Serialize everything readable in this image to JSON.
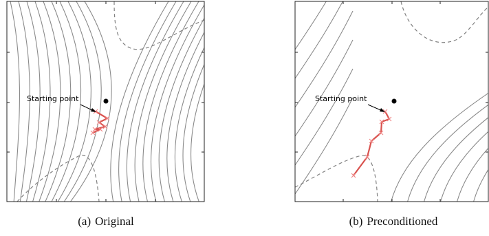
{
  "panels": [
    {
      "id": "a",
      "caption_tag": "(a)",
      "caption_text": "Original",
      "annotation": "Starting point",
      "colors": {
        "contour": "#8a8a8a",
        "dashed": "#808080",
        "path": "#d9534f",
        "marker": "#f08a8a",
        "point": "#000000"
      }
    },
    {
      "id": "b",
      "caption_tag": "(b)",
      "caption_text": "Preconditioned",
      "annotation": "Starting point",
      "colors": {
        "contour": "#8a8a8a",
        "dashed": "#808080",
        "path": "#d9534f",
        "marker": "#f08a8a",
        "point": "#000000"
      }
    }
  ]
}
